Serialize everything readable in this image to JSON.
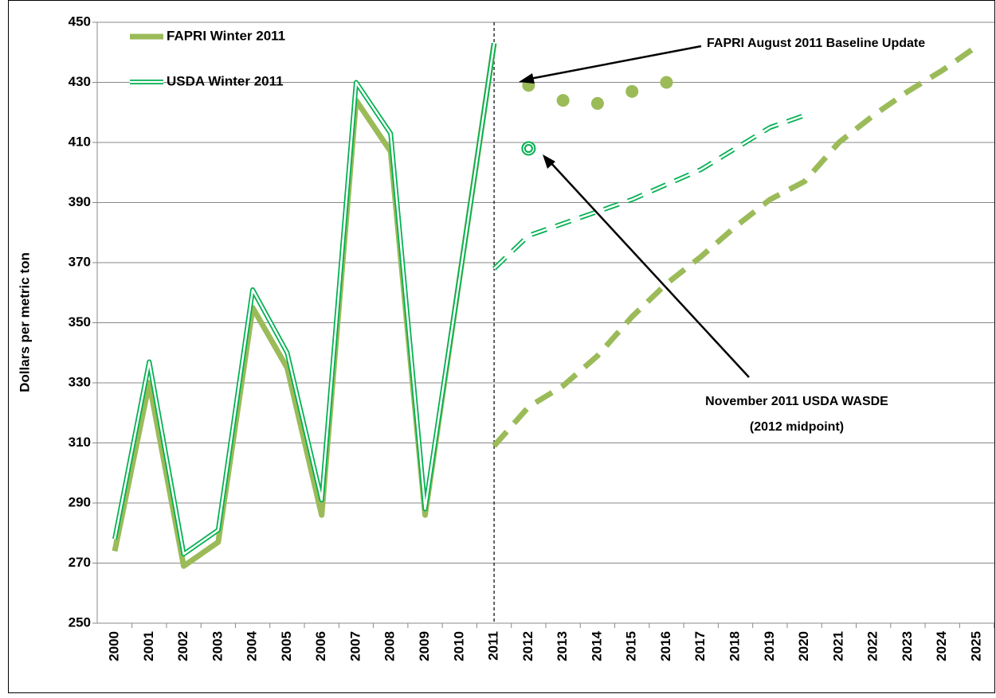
{
  "chart_data": {
    "type": "line",
    "y_label": "Dollars per metric ton",
    "categories": [
      "2000",
      "2001",
      "2002",
      "2003",
      "2004",
      "2005",
      "2006",
      "2007",
      "2008",
      "2009",
      "2010",
      "2011",
      "2012",
      "2013",
      "2014",
      "2015",
      "2016",
      "2017",
      "2018",
      "2019",
      "2020",
      "2021",
      "2022",
      "2023",
      "2024",
      "2025"
    ],
    "ylim": [
      250,
      450
    ],
    "yticks": [
      250,
      270,
      290,
      310,
      330,
      350,
      370,
      390,
      410,
      430,
      450
    ],
    "grid": true,
    "legend": "upper left",
    "divider": "2011",
    "series": [
      {
        "name": "FAPRI Winter 2011",
        "color": "#9bbb59",
        "style": "thick",
        "values": [
          274,
          330,
          269,
          277,
          355,
          335,
          286,
          424,
          407,
          286,
          365,
          443,
          null,
          null,
          null,
          null,
          null,
          null,
          null,
          null,
          null,
          null,
          null,
          null,
          null,
          null
        ],
        "projection": [
          null,
          null,
          null,
          null,
          null,
          null,
          null,
          null,
          null,
          null,
          null,
          309,
          322,
          329,
          339,
          352,
          363,
          372,
          382,
          391,
          397,
          410,
          419,
          427,
          434,
          442
        ]
      },
      {
        "name": "USDA Winter 2011",
        "color": "#00b050",
        "style": "double",
        "values": [
          278,
          337,
          273,
          281,
          361,
          340,
          291,
          430,
          413,
          288,
          365,
          443,
          null,
          null,
          null,
          null,
          null,
          null,
          null,
          null,
          null,
          null,
          null,
          null,
          null,
          null
        ],
        "projection": [
          null,
          null,
          null,
          null,
          null,
          null,
          null,
          null,
          null,
          null,
          null,
          368,
          379,
          383,
          387,
          391,
          396,
          401,
          408,
          415,
          419,
          null,
          null,
          null,
          null,
          null
        ]
      }
    ],
    "points": [
      {
        "color": "#9bbb59",
        "style": "dot",
        "values": [
          null,
          null,
          null,
          null,
          null,
          null,
          null,
          null,
          null,
          null,
          null,
          null,
          429,
          424,
          423,
          427,
          430,
          null,
          null,
          null,
          null,
          null,
          null,
          null,
          null,
          null
        ]
      },
      {
        "color": "#00b050",
        "style": "ring",
        "values": [
          null,
          null,
          null,
          null,
          null,
          null,
          null,
          null,
          null,
          null,
          null,
          null,
          408,
          null,
          null,
          null,
          null,
          null,
          null,
          null,
          null,
          null,
          null,
          null,
          null,
          null
        ]
      }
    ],
    "annotations": [
      {
        "lines": [
          "FAPRI August 2011 Baseline Update"
        ]
      },
      {
        "lines": [
          "November 2011 USDA WASDE",
          "(2012 midpoint)"
        ]
      }
    ]
  }
}
